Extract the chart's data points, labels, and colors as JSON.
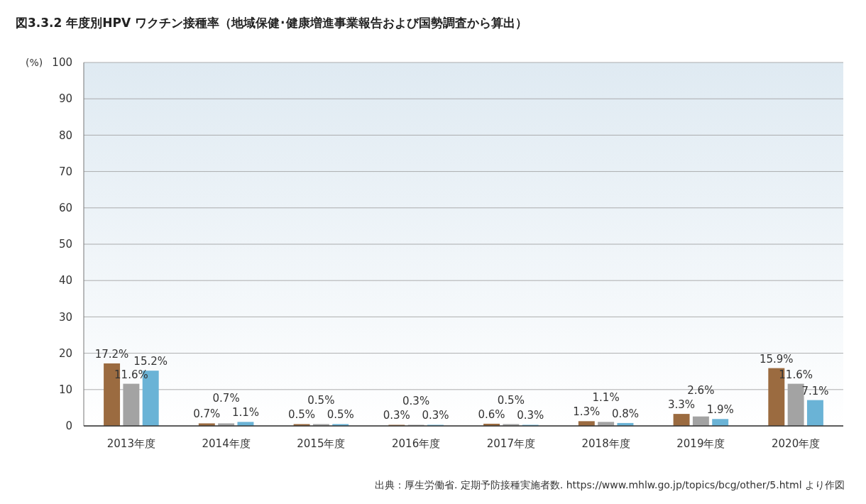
{
  "chart_data": {
    "type": "bar",
    "title": "図3.3.2  年度別HPV ワクチン接種率（地域保健･健康増進事業報告および国勢調査から算出）",
    "ylabel": "(%)",
    "categories": [
      "2013年度",
      "2014年度",
      "2015年度",
      "2016年度",
      "2017年度",
      "2018年度",
      "2019年度",
      "2020年度"
    ],
    "series": [
      {
        "color": "#9b6b40",
        "values": [
          17.2,
          0.7,
          0.5,
          0.3,
          0.6,
          1.3,
          3.3,
          15.9
        ],
        "value_labels": [
          "17.2%",
          "0.7%",
          "0.5%",
          "0.3%",
          "0.6%",
          "1.3%",
          "3.3%",
          "15.9%"
        ]
      },
      {
        "color": "#a3a3a3",
        "values": [
          11.6,
          0.7,
          0.5,
          0.3,
          0.5,
          1.1,
          2.6,
          11.6
        ],
        "value_labels": [
          "11.6%",
          "0.7%",
          "0.5%",
          "0.3%",
          "0.5%",
          "1.1%",
          "2.6%",
          "11.6%"
        ]
      },
      {
        "color": "#6ab3d6",
        "values": [
          15.2,
          1.1,
          0.5,
          0.3,
          0.3,
          0.8,
          1.9,
          7.1
        ],
        "value_labels": [
          "15.2%",
          "1.1%",
          "0.5%",
          "0.3%",
          "0.3%",
          "0.8%",
          "1.9%",
          "7.1%"
        ]
      }
    ],
    "ylim": [
      0,
      100
    ],
    "yticks": [
      0,
      10,
      20,
      30,
      40,
      50,
      60,
      70,
      80,
      90,
      100
    ],
    "grid": "y",
    "annotations": [
      "出典：厚生労働省. 定期予防接種実施者数. https://www.mhlw.go.jp/topics/bcg/other/5.html  より作図"
    ]
  }
}
